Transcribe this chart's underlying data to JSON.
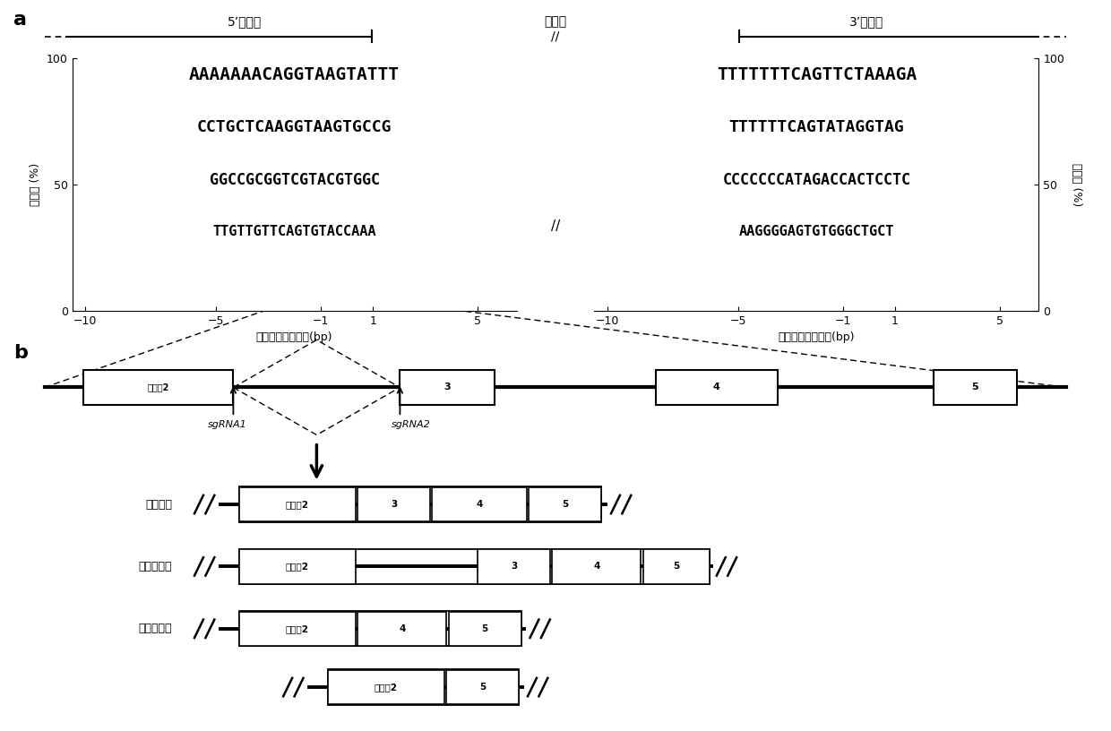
{
  "panel_a_label": "a",
  "panel_b_label": "b",
  "logo_left_title": "5’外显子",
  "logo_mid_title": "内含子",
  "logo_right_title": "3’外显子",
  "logo_left_xlabel": "自剪接位点的距离(bp)",
  "logo_right_xlabel": "自剪接位点的距离(bp)",
  "logo_ylabel_l": "可能性 (%)",
  "logo_ylabel_r": "可能性 (%)",
  "sgrna1_label": "sgRNA1",
  "sgrna2_label": "sgRNA2",
  "outcome_label_0": "正常剪切",
  "outcome_label_1": "内含子保留",
  "outcome_label_2": "外显子跳跃",
  "exon2_label": "外显子2",
  "exon3_label": "3",
  "exon4_label": "4",
  "exon5_label": "5",
  "bg_color": "#ffffff"
}
